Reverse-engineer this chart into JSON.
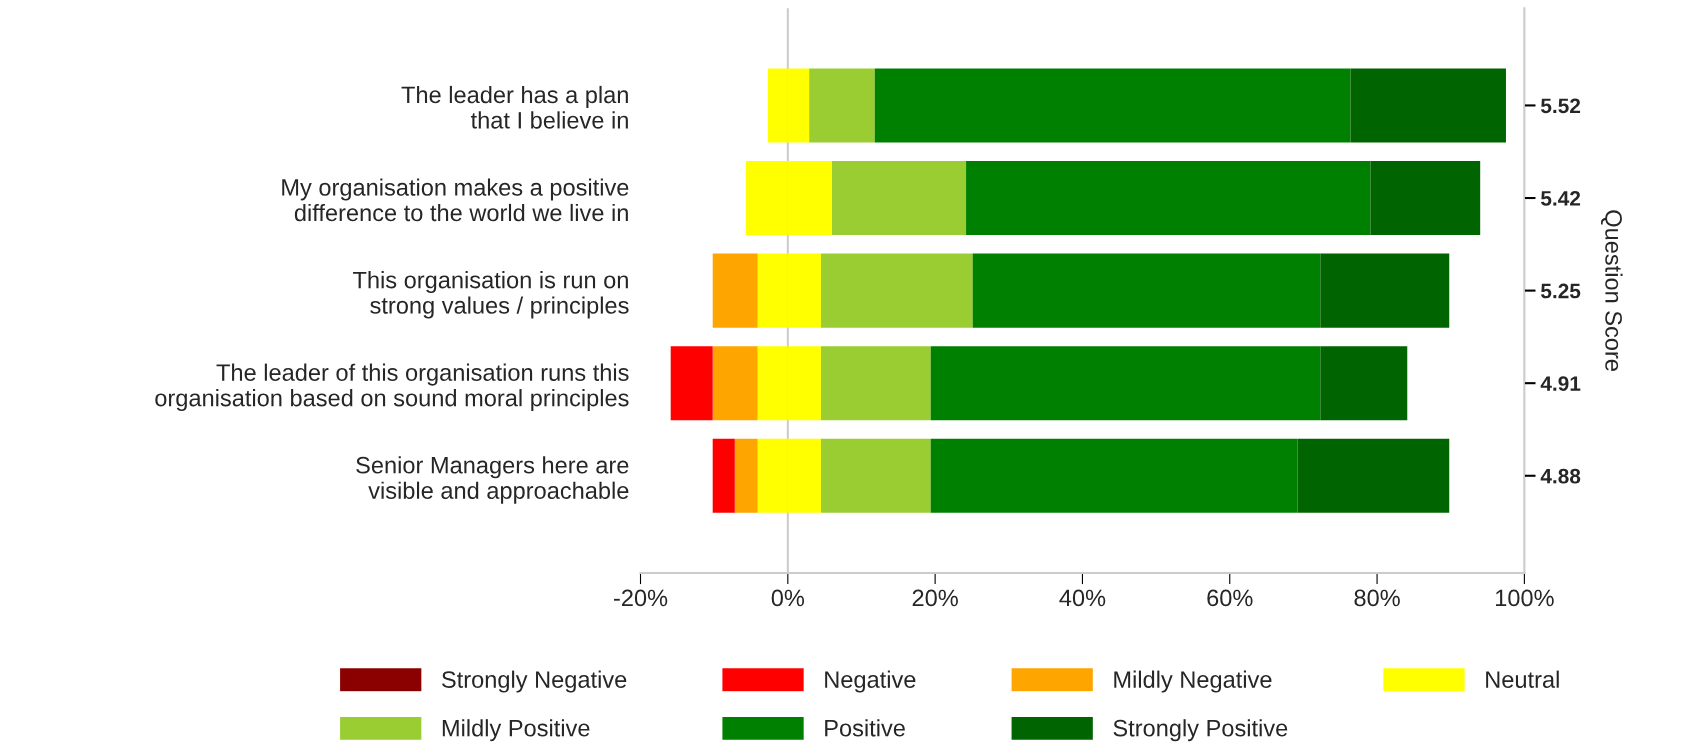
{
  "chart_data": {
    "type": "bar",
    "orientation": "horizontal",
    "stacked": true,
    "categories": [
      "The leader has a plan\nthat I believe in",
      "My organisation makes a positive\ndifference to the world we live in",
      "This organisation is run on\nstrong values / principles",
      "The leader of this organisation runs this\norganisation based on sound moral principles",
      "Senior Managers here are\nvisible and approachable"
    ],
    "series": [
      {
        "color": "#ffff00",
        "values": [
          -2.7,
          -5.7,
          -4.1,
          -4.1,
          -4.1
        ]
      },
      {
        "name": "Mildly Negative",
        "color": "#ffa500",
        "values": [
          0,
          0,
          -6.1,
          -6.1,
          -3.1
        ]
      },
      {
        "name": "Negative",
        "color": "#ff0000",
        "values": [
          0,
          0,
          0,
          -5.7,
          -3.0
        ]
      },
      {
        "name": "Strongly Negative",
        "color": "#8b0000",
        "values": [
          0,
          0,
          0,
          0,
          0
        ]
      },
      {
        "name": "Neutral",
        "color": "#ffff00",
        "values": [
          2.9,
          6.0,
          4.5,
          4.5,
          4.5
        ]
      },
      {
        "name": "Mildly Positive",
        "color": "#9acd32",
        "values": [
          8.9,
          18.2,
          20.6,
          14.9,
          14.9
        ]
      },
      {
        "name": "Positive",
        "color": "#008000",
        "values": [
          64.6,
          54.9,
          47.2,
          52.9,
          49.8
        ]
      },
      {
        "name": "Strongly Positive",
        "color": "#006400",
        "values": [
          21.1,
          14.9,
          17.5,
          11.8,
          20.6
        ]
      }
    ],
    "xlim": [
      -20,
      100
    ],
    "xticks": [
      {
        "value": -20,
        "label": "-20%"
      },
      {
        "value": 0,
        "label": "0%"
      },
      {
        "value": 20,
        "label": "20%"
      },
      {
        "value": 40,
        "label": "40%"
      },
      {
        "value": 60,
        "label": "60%"
      },
      {
        "value": 80,
        "label": "80%"
      },
      {
        "value": 100,
        "label": "100%"
      }
    ],
    "ref_lines": [
      {
        "axis": "x",
        "value": 0,
        "color": "#cccccc"
      }
    ],
    "y2label": "Question Score",
    "annotations": [
      "5.52",
      "5.42",
      "5.25",
      "4.91",
      "4.88"
    ],
    "legend": "bottom"
  }
}
